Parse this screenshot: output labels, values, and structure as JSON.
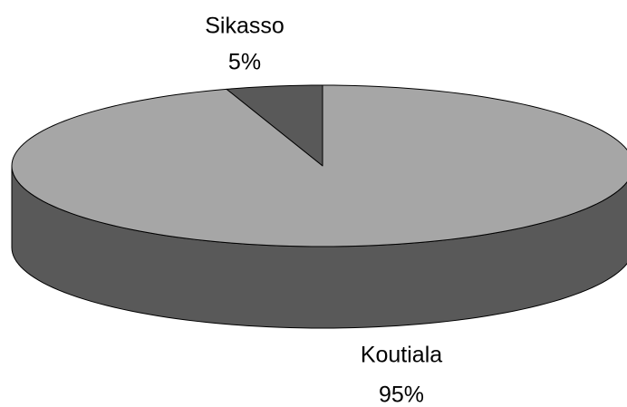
{
  "chart_data": {
    "type": "pie",
    "categories": [
      "Sikasso",
      "Koutiala"
    ],
    "values": [
      5,
      95
    ],
    "value_labels": [
      "5%",
      "95%"
    ],
    "colors": [
      "#595959",
      "#a6a6a6"
    ],
    "side_colors": [
      "#3f3f3f",
      "#595959"
    ]
  }
}
